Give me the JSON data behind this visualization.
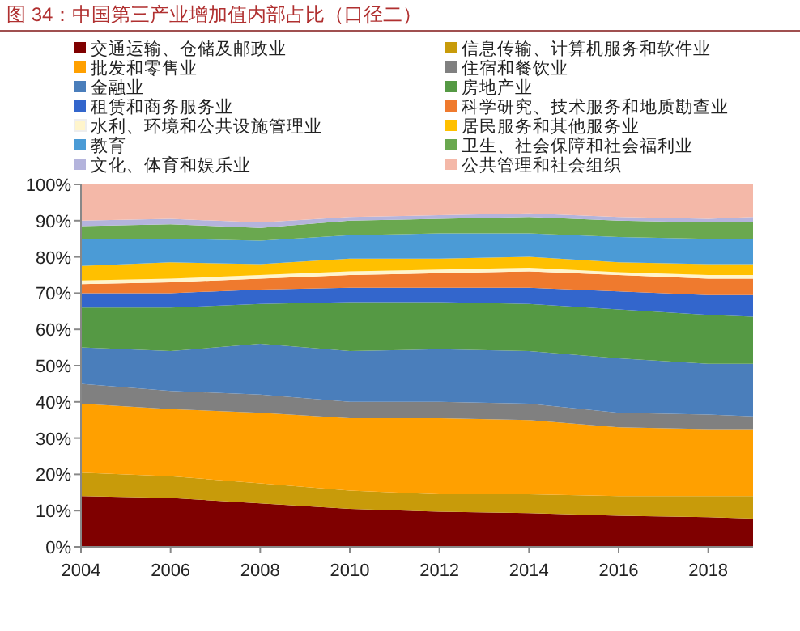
{
  "chart_data": {
    "type": "area",
    "stacked": true,
    "title": "图 34：中国第三产业增加值内部占比（口径二）",
    "x": [
      2004,
      2006,
      2008,
      2010,
      2012,
      2014,
      2016,
      2018,
      2019
    ],
    "xlim": [
      2004,
      2019
    ],
    "xticks": [
      2004,
      2006,
      2008,
      2010,
      2012,
      2014,
      2016,
      2018
    ],
    "ylim": [
      0,
      100
    ],
    "yticks": [
      {
        "value": 0,
        "label": "0%"
      },
      {
        "value": 10,
        "label": "10%"
      },
      {
        "value": 20,
        "label": "20%"
      },
      {
        "value": 30,
        "label": "30%"
      },
      {
        "value": 40,
        "label": "40%"
      },
      {
        "value": 50,
        "label": "50%"
      },
      {
        "value": 60,
        "label": "60%"
      },
      {
        "value": 70,
        "label": "70%"
      },
      {
        "value": 80,
        "label": "80%"
      },
      {
        "value": 90,
        "label": "90%"
      },
      {
        "value": 100,
        "label": "100%"
      }
    ],
    "grid": false,
    "legend": "top",
    "series": [
      {
        "name": "交通运输、仓储及邮政业",
        "color": "#7f0000",
        "values": [
          14,
          13.5,
          12,
          10.5,
          9.7,
          9.3,
          8.6,
          8.2,
          7.8
        ]
      },
      {
        "name": "信息传输、计算机服务和软件业",
        "color": "#c89b0a",
        "values": [
          6.5,
          6,
          5.5,
          5,
          4.8,
          5.2,
          5.4,
          5.8,
          6.2
        ]
      },
      {
        "name": "批发和零售业",
        "color": "#ffa000",
        "values": [
          19,
          18.5,
          19.5,
          20,
          21,
          20.5,
          19,
          18.5,
          18.5
        ]
      },
      {
        "name": "住宿和餐饮业",
        "color": "#808080",
        "values": [
          5.5,
          5,
          5,
          4.5,
          4.5,
          4.5,
          4,
          4,
          3.5
        ]
      },
      {
        "name": "金融业",
        "color": "#4a7ebb",
        "values": [
          10,
          11,
          14,
          14,
          14.5,
          14.5,
          15,
          14,
          14.5
        ]
      },
      {
        "name": "房地产业",
        "color": "#559944",
        "values": [
          11,
          12,
          11,
          13.5,
          13,
          13,
          13.5,
          13.5,
          13
        ]
      },
      {
        "name": "租赁和商务服务业",
        "color": "#3366cc",
        "values": [
          4,
          4,
          4,
          4,
          4,
          4.5,
          5,
          5.5,
          6
        ]
      },
      {
        "name": "科学研究、技术服务和地质勘查业",
        "color": "#ef7a2e",
        "values": [
          2.5,
          3,
          3,
          3.5,
          4,
          4.5,
          4.5,
          4.5,
          4.5
        ]
      },
      {
        "name": "水利、环境和公共设施管理业",
        "color": "#fff5cc",
        "values": [
          1,
          1,
          1,
          1,
          1,
          1,
          0.8,
          1,
          1
        ]
      },
      {
        "name": "居民服务和其他服务业",
        "color": "#ffc000",
        "values": [
          4,
          4.5,
          3,
          3.5,
          3,
          3,
          2.7,
          3,
          3
        ]
      },
      {
        "name": "教育",
        "color": "#4b9bd6",
        "values": [
          7.5,
          6.5,
          6.5,
          6.5,
          7,
          6.5,
          7,
          7,
          7
        ]
      },
      {
        "name": "卫生、社会保障和社会福利业",
        "color": "#6aa84f",
        "values": [
          3.5,
          4,
          3.5,
          4,
          4,
          4.5,
          4.5,
          4.5,
          4.5
        ]
      },
      {
        "name": "文化、体育和娱乐业",
        "color": "#b4b4dc",
        "values": [
          1.5,
          1.5,
          1.5,
          1,
          1,
          1,
          1,
          1,
          1.5
        ]
      },
      {
        "name": "公共管理和社会组织",
        "color": "#f4b8a8",
        "values": [
          10,
          9.5,
          10.5,
          9,
          8.5,
          8,
          9,
          9.5,
          9
        ]
      }
    ]
  }
}
